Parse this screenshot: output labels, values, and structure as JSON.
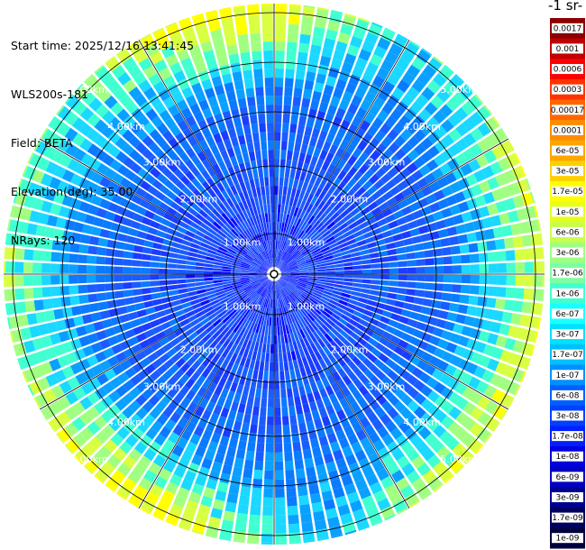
{
  "header": {
    "start_time": "Start time: 2025/12/16 13:41:45",
    "device": "WLS200s-181",
    "field": "Field: BETA",
    "elevation": "Elevation(deg): 35.00",
    "nrays": "NRays: 120"
  },
  "colorbar": {
    "title": "-1 sr-",
    "labels": [
      "0.0017",
      "0.001",
      "0.0006",
      "0.0003",
      "0.00017",
      "0.0001",
      "6e-05",
      "3e-05",
      "1.7e-05",
      "1e-05",
      "6e-06",
      "3e-06",
      "1.7e-06",
      "1e-06",
      "6e-07",
      "3e-07",
      "1.7e-07",
      "1e-07",
      "6e-08",
      "3e-08",
      "1.7e-08",
      "1e-08",
      "6e-09",
      "3e-09",
      "1.7e-09",
      "1e-09"
    ],
    "colors": [
      "#8b0000",
      "#c00000",
      "#ff0000",
      "#ff3300",
      "#ff6600",
      "#ff8c00",
      "#ffa500",
      "#ffd000",
      "#ffff00",
      "#e6ff1a",
      "#c8ff4d",
      "#a0ff80",
      "#7dffa0",
      "#40ffd0",
      "#1affff",
      "#00e0ff",
      "#00c0ff",
      "#0090ff",
      "#0060ff",
      "#0040ff",
      "#0020ff",
      "#0000e0",
      "#0000c0",
      "#000090",
      "#000060",
      "#000040"
    ]
  },
  "rings": {
    "labels": [
      "1.00km",
      "2.00km",
      "3.00km",
      "4.00km",
      "5.00km"
    ]
  },
  "scan": {
    "nrays": 120
  }
}
